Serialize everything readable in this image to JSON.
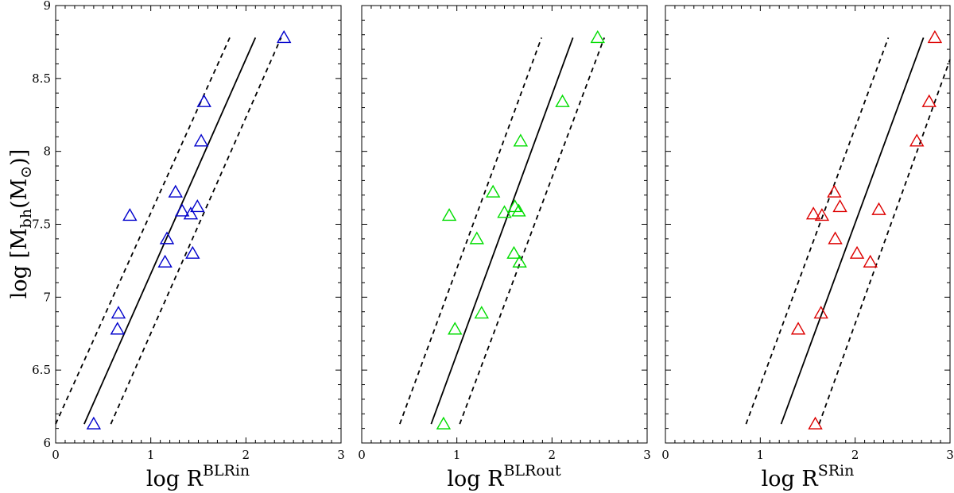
{
  "ylabel": {
    "prefix": "log [M",
    "sub": "bh",
    "mid": "(M",
    "sun": "⊙",
    "suffix": ")]"
  },
  "chart_data": [
    {
      "type": "scatter",
      "xlabel": {
        "main": "log R",
        "sup": "BLR",
        "sub": "in"
      },
      "xlim": [
        0,
        3
      ],
      "ylim": [
        6,
        9
      ],
      "xticks": [
        "0",
        "1",
        "2",
        "3"
      ],
      "yticks": [
        "6",
        "6.5",
        "7",
        "7.5",
        "8",
        "8.5",
        "9"
      ],
      "marker_color": "#0000cc",
      "points": [
        [
          0.4,
          6.13
        ],
        [
          0.65,
          6.78
        ],
        [
          0.66,
          6.89
        ],
        [
          0.78,
          7.56
        ],
        [
          1.15,
          7.24
        ],
        [
          1.17,
          7.4
        ],
        [
          1.26,
          7.72
        ],
        [
          1.33,
          7.59
        ],
        [
          1.42,
          7.57
        ],
        [
          1.49,
          7.62
        ],
        [
          1.44,
          7.3
        ],
        [
          1.53,
          8.07
        ],
        [
          1.56,
          8.34
        ],
        [
          2.4,
          8.78
        ]
      ],
      "fit_line": [
        [
          0.3,
          6.13
        ],
        [
          2.1,
          8.78
        ]
      ],
      "upper_line": [
        [
          0.0,
          6.13
        ],
        [
          1.83,
          8.78
        ]
      ],
      "lower_line": [
        [
          0.58,
          6.13
        ],
        [
          2.37,
          8.78
        ]
      ]
    },
    {
      "type": "scatter",
      "xlabel": {
        "main": "log R",
        "sup": "BLR",
        "sub": "out"
      },
      "xlim": [
        0,
        3
      ],
      "ylim": [
        6,
        9
      ],
      "xticks": [
        "0",
        "1",
        "2",
        "3"
      ],
      "yticks": [
        "6",
        "6.5",
        "7",
        "7.5",
        "8",
        "8.5",
        "9"
      ],
      "marker_color": "#00dd00",
      "points": [
        [
          0.86,
          6.13
        ],
        [
          0.98,
          6.78
        ],
        [
          1.26,
          6.89
        ],
        [
          0.92,
          7.56
        ],
        [
          1.21,
          7.4
        ],
        [
          1.38,
          7.72
        ],
        [
          1.5,
          7.58
        ],
        [
          1.61,
          7.62
        ],
        [
          1.65,
          7.59
        ],
        [
          1.6,
          7.3
        ],
        [
          1.66,
          7.24
        ],
        [
          1.67,
          8.07
        ],
        [
          2.11,
          8.34
        ],
        [
          2.48,
          8.78
        ]
      ],
      "fit_line": [
        [
          0.73,
          6.13
        ],
        [
          2.22,
          8.78
        ]
      ],
      "upper_line": [
        [
          0.4,
          6.13
        ],
        [
          1.89,
          8.78
        ]
      ],
      "lower_line": [
        [
          1.03,
          6.13
        ],
        [
          2.55,
          8.78
        ]
      ]
    },
    {
      "type": "scatter",
      "xlabel": {
        "main": "log R",
        "sup": "SR",
        "sub": "in"
      },
      "xlim": [
        0,
        3
      ],
      "ylim": [
        6,
        9
      ],
      "xticks": [
        "0",
        "1",
        "2",
        "3"
      ],
      "yticks": [
        "6",
        "6.5",
        "7",
        "7.5",
        "8",
        "8.5",
        "9"
      ],
      "marker_color": "#dd0000",
      "points": [
        [
          1.58,
          6.13
        ],
        [
          1.4,
          6.78
        ],
        [
          1.64,
          6.89
        ],
        [
          1.56,
          7.57
        ],
        [
          1.65,
          7.56
        ],
        [
          1.78,
          7.72
        ],
        [
          1.84,
          7.62
        ],
        [
          1.79,
          7.4
        ],
        [
          2.02,
          7.3
        ],
        [
          2.16,
          7.24
        ],
        [
          2.25,
          7.6
        ],
        [
          2.65,
          8.07
        ],
        [
          2.78,
          8.34
        ],
        [
          2.84,
          8.78
        ]
      ],
      "fit_line": [
        [
          1.22,
          6.13
        ],
        [
          2.72,
          8.78
        ]
      ],
      "upper_line": [
        [
          0.85,
          6.13
        ],
        [
          2.35,
          8.78
        ]
      ],
      "lower_line": [
        [
          1.62,
          6.13
        ],
        [
          3.0,
          8.63
        ]
      ]
    }
  ]
}
